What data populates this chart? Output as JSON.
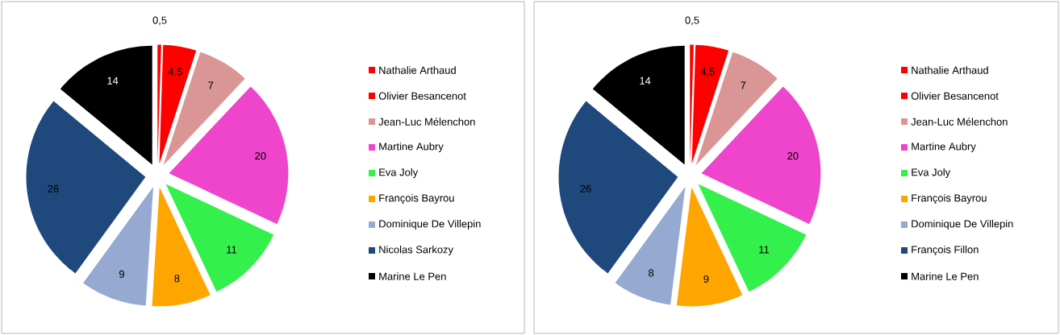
{
  "chart_data": [
    {
      "type": "pie",
      "categories": [
        "Nathalie Arthaud",
        "Olivier Besancenot",
        "Jean-Luc Mélenchon",
        "Martine Aubry",
        "Eva Joly",
        "François Bayrou",
        "Dominique De Villepin",
        "Nicolas Sarkozy",
        "Marine Le Pen"
      ],
      "values": [
        0.5,
        4.5,
        7,
        20,
        11,
        8,
        9,
        26,
        14
      ],
      "value_labels": [
        "0,5",
        "4,5",
        "7",
        "20",
        "11",
        "8",
        "9",
        "26",
        "14"
      ],
      "colors": [
        "#ff0000",
        "#ff0000",
        "#d99694",
        "#ee45cc",
        "#33f04c",
        "#ffa500",
        "#95a9d1",
        "#1f497d",
        "#000000"
      ],
      "legend": "right"
    },
    {
      "type": "pie",
      "categories": [
        "Nathalie Arthaud",
        "Olivier Besancenot",
        "Jean-Luc Mélenchon",
        "Martine Aubry",
        "Eva Joly",
        "François Bayrou",
        "Dominique De Villepin",
        "François Fillon",
        "Marine Le Pen"
      ],
      "values": [
        0.5,
        4.5,
        7,
        20,
        11,
        9,
        8,
        26,
        14
      ],
      "value_labels": [
        "0,5",
        "4,5",
        "7",
        "20",
        "11",
        "9",
        "8",
        "26",
        "14"
      ],
      "colors": [
        "#ff0000",
        "#ff0000",
        "#d99694",
        "#ee45cc",
        "#33f04c",
        "#ffa500",
        "#95a9d1",
        "#1f497d",
        "#000000"
      ],
      "legend": "right"
    }
  ]
}
